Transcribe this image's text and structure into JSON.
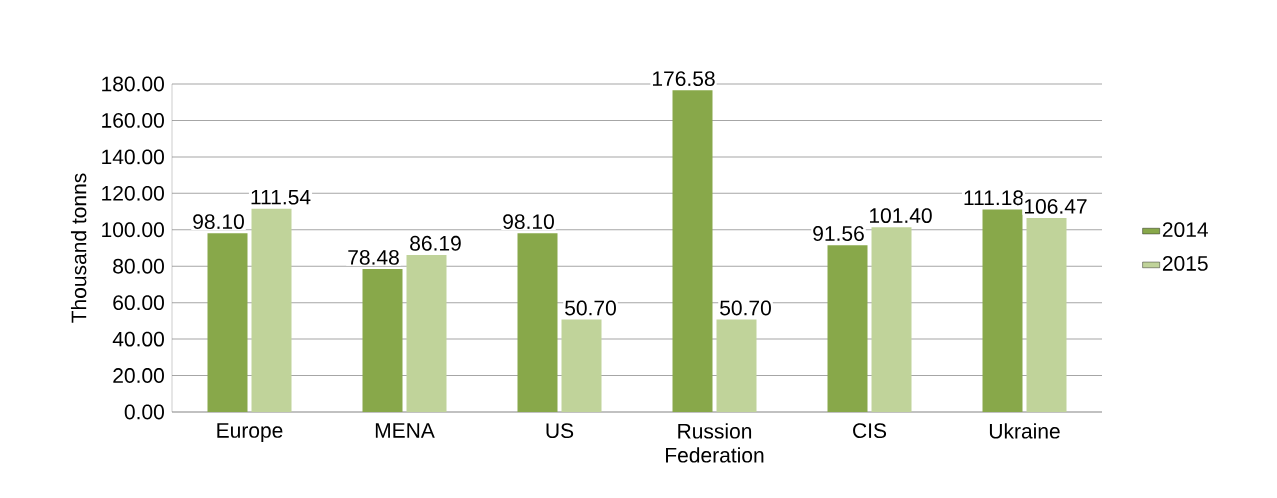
{
  "chart_data": {
    "type": "bar",
    "ylabel": "Thousand tonns",
    "categories": [
      "Europe",
      "MENA",
      "US",
      "Russion Federation",
      "CIS",
      "Ukraine"
    ],
    "series": [
      {
        "name": "2014",
        "color": "#88a84a",
        "values": [
          98.1,
          78.48,
          98.1,
          176.58,
          91.56,
          111.18
        ],
        "value_labels": [
          "98.10",
          "78.48",
          "98.10",
          "176.58",
          "91.56",
          "111.18"
        ]
      },
      {
        "name": "2015",
        "color": "#c0d39a",
        "values": [
          111.54,
          86.19,
          50.7,
          50.7,
          101.4,
          106.47
        ],
        "value_labels": [
          "111.54",
          "86.19",
          "50.70",
          "50.70",
          "101.40",
          "106.47"
        ]
      }
    ],
    "ylim": [
      0,
      180
    ],
    "yticks": [
      {
        "value": 0,
        "label": "0.00"
      },
      {
        "value": 20,
        "label": "20.00"
      },
      {
        "value": 40,
        "label": "40.00"
      },
      {
        "value": 60,
        "label": "60.00"
      },
      {
        "value": 80,
        "label": "80.00"
      },
      {
        "value": 100,
        "label": "100.00"
      },
      {
        "value": 120,
        "label": "120.00"
      },
      {
        "value": 140,
        "label": "140.00"
      },
      {
        "value": 160,
        "label": "160.00"
      },
      {
        "value": 180,
        "label": "180.00"
      }
    ],
    "grid": "y",
    "legend": "right"
  }
}
